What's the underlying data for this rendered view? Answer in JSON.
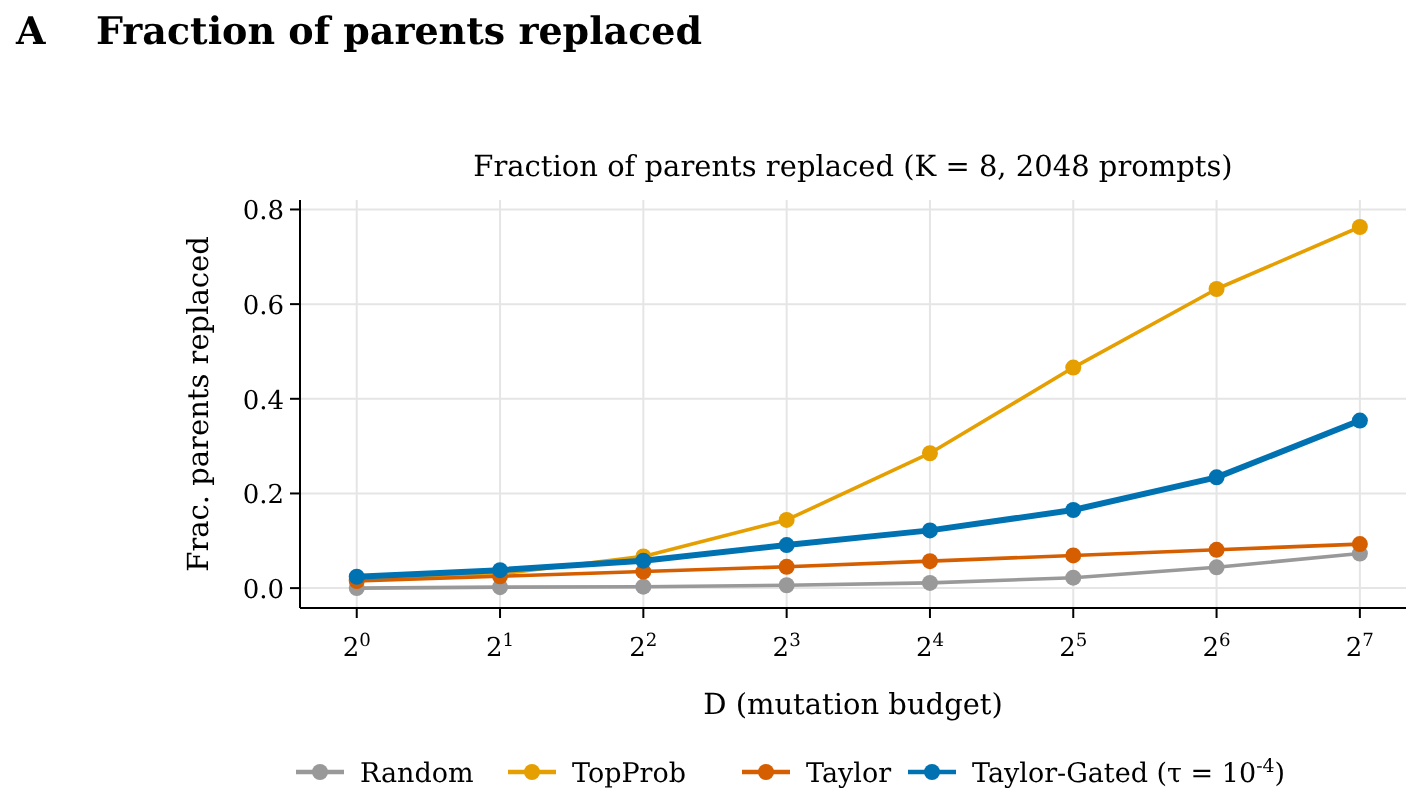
{
  "chart_data": {
    "type": "line",
    "title": "Fraction of parents replaced (K = 8, 2048 prompts)",
    "annotations": [
      "A",
      "Fraction of parents replaced"
    ],
    "xlabel": "D (mutation budget)",
    "ylabel": "Frac. parents replaced",
    "x": [
      1,
      2,
      4,
      8,
      16,
      32,
      64,
      128
    ],
    "log": "x",
    "xlim": [
      0.76,
      160
    ],
    "xticks": [
      {
        "value": 1,
        "label": "2$^{0}$"
      },
      {
        "value": 2,
        "label": "2$^{1}$"
      },
      {
        "value": 4,
        "label": "2$^{2}$"
      },
      {
        "value": 8,
        "label": "2$^{3}$"
      },
      {
        "value": 16,
        "label": "2$^{4}$"
      },
      {
        "value": 32,
        "label": "2$^{5}$"
      },
      {
        "value": 64,
        "label": "2$^{6}$"
      },
      {
        "value": 128,
        "label": "2$^{7}$"
      }
    ],
    "ylim": [
      -0.042,
      0.82
    ],
    "yticks": [
      {
        "value": 0,
        "label": "0.0"
      },
      {
        "value": 0.2,
        "label": "0.2"
      },
      {
        "value": 0.4,
        "label": "0.4"
      },
      {
        "value": 0.6,
        "label": "0.6"
      },
      {
        "value": 0.8,
        "label": "0.8"
      }
    ],
    "grid": true,
    "legend": "bottom",
    "marker": "circle",
    "line_style": "solid",
    "series": [
      {
        "name": "Random",
        "color": "#999999",
        "values": [
          0.0,
          0.002,
          0.003,
          0.006,
          0.011,
          0.022,
          0.044,
          0.073
        ]
      },
      {
        "name": "TopProb",
        "color": "#e69f00",
        "values": [
          0.018,
          0.03,
          0.067,
          0.144,
          0.285,
          0.466,
          0.632,
          0.763
        ]
      },
      {
        "name": "Taylor",
        "color": "#d55e00",
        "values": [
          0.015,
          0.025,
          0.035,
          0.045,
          0.057,
          0.069,
          0.081,
          0.093
        ]
      },
      {
        "name": "Taylor-Gated (τ = 10$^{-4}$)",
        "color": "#0072b2",
        "values": [
          0.024,
          0.038,
          0.058,
          0.091,
          0.122,
          0.165,
          0.234,
          0.354
        ]
      }
    ]
  }
}
